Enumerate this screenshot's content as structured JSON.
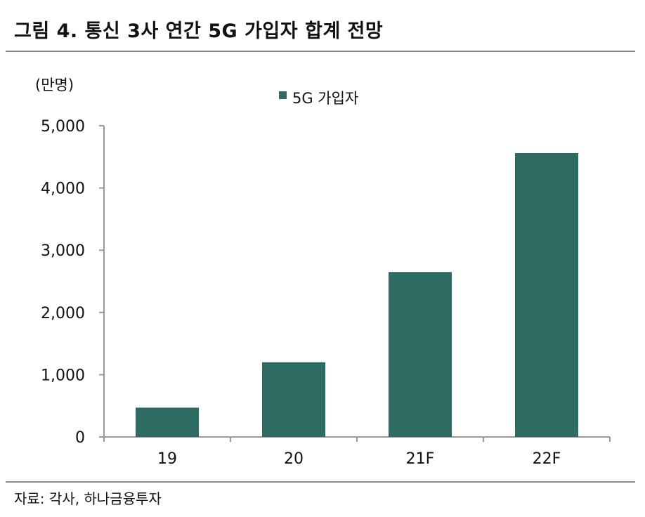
{
  "figure": {
    "title": "그림 4. 통신 3사 연간 5G 가입자 합계 전망",
    "source": "자료: 각사, 하나금융투자"
  },
  "chart_data": {
    "type": "bar",
    "unit_label": "(만명)",
    "categories": [
      "19",
      "20",
      "21F",
      "22F"
    ],
    "series": [
      {
        "name": "5G 가입자",
        "color": "#2e6b62",
        "values": [
          470,
          1200,
          2650,
          4560
        ]
      }
    ],
    "ylim": [
      0,
      5000
    ],
    "yticks": [
      0,
      1000,
      2000,
      3000,
      4000,
      5000
    ],
    "ytick_labels": [
      "0",
      "1,000",
      "2,000",
      "3,000",
      "4,000",
      "5,000"
    ],
    "grid": false,
    "legend_position": "top-center"
  }
}
